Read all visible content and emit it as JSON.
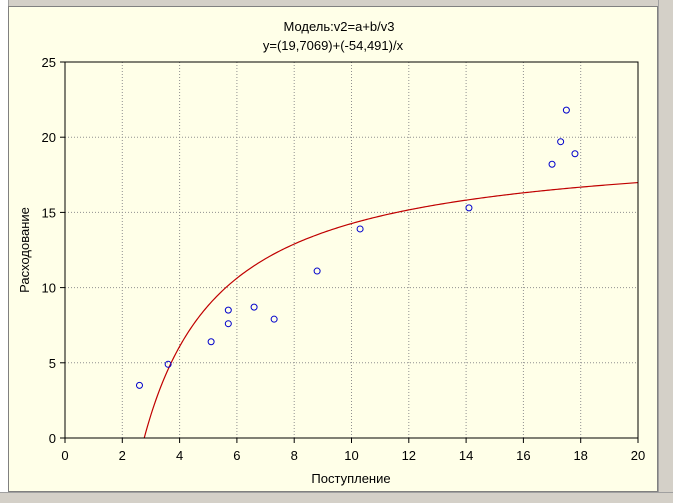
{
  "chart_data": {
    "type": "scatter",
    "title": "Модель:v2=a+b/v3",
    "subtitle": "y=(19,7069)+(-54,491)/x",
    "xlabel": "Поступление",
    "ylabel": "Расходование",
    "xlim": [
      0,
      20
    ],
    "ylim": [
      0,
      25
    ],
    "xticks": [
      "0",
      "2",
      "4",
      "6",
      "8",
      "10",
      "12",
      "14",
      "16",
      "18",
      "20"
    ],
    "yticks": [
      "0",
      "5",
      "10",
      "15",
      "20",
      "25"
    ],
    "grid": true,
    "points": [
      {
        "x": 2.6,
        "y": 3.5
      },
      {
        "x": 3.6,
        "y": 4.9
      },
      {
        "x": 5.1,
        "y": 6.4
      },
      {
        "x": 5.7,
        "y": 7.6
      },
      {
        "x": 5.7,
        "y": 8.5
      },
      {
        "x": 6.6,
        "y": 8.7
      },
      {
        "x": 7.3,
        "y": 7.9
      },
      {
        "x": 8.8,
        "y": 11.1
      },
      {
        "x": 10.3,
        "y": 13.9
      },
      {
        "x": 14.1,
        "y": 15.3
      },
      {
        "x": 17.0,
        "y": 18.2
      },
      {
        "x": 17.3,
        "y": 19.7
      },
      {
        "x": 17.5,
        "y": 21.8
      },
      {
        "x": 17.8,
        "y": 18.9
      }
    ],
    "fit": {
      "a": 19.7069,
      "b": -54.491
    },
    "colors": {
      "points": "#0000cc",
      "fit_line": "#c00000",
      "background": "#ffffe8",
      "grid": "#909090"
    }
  }
}
